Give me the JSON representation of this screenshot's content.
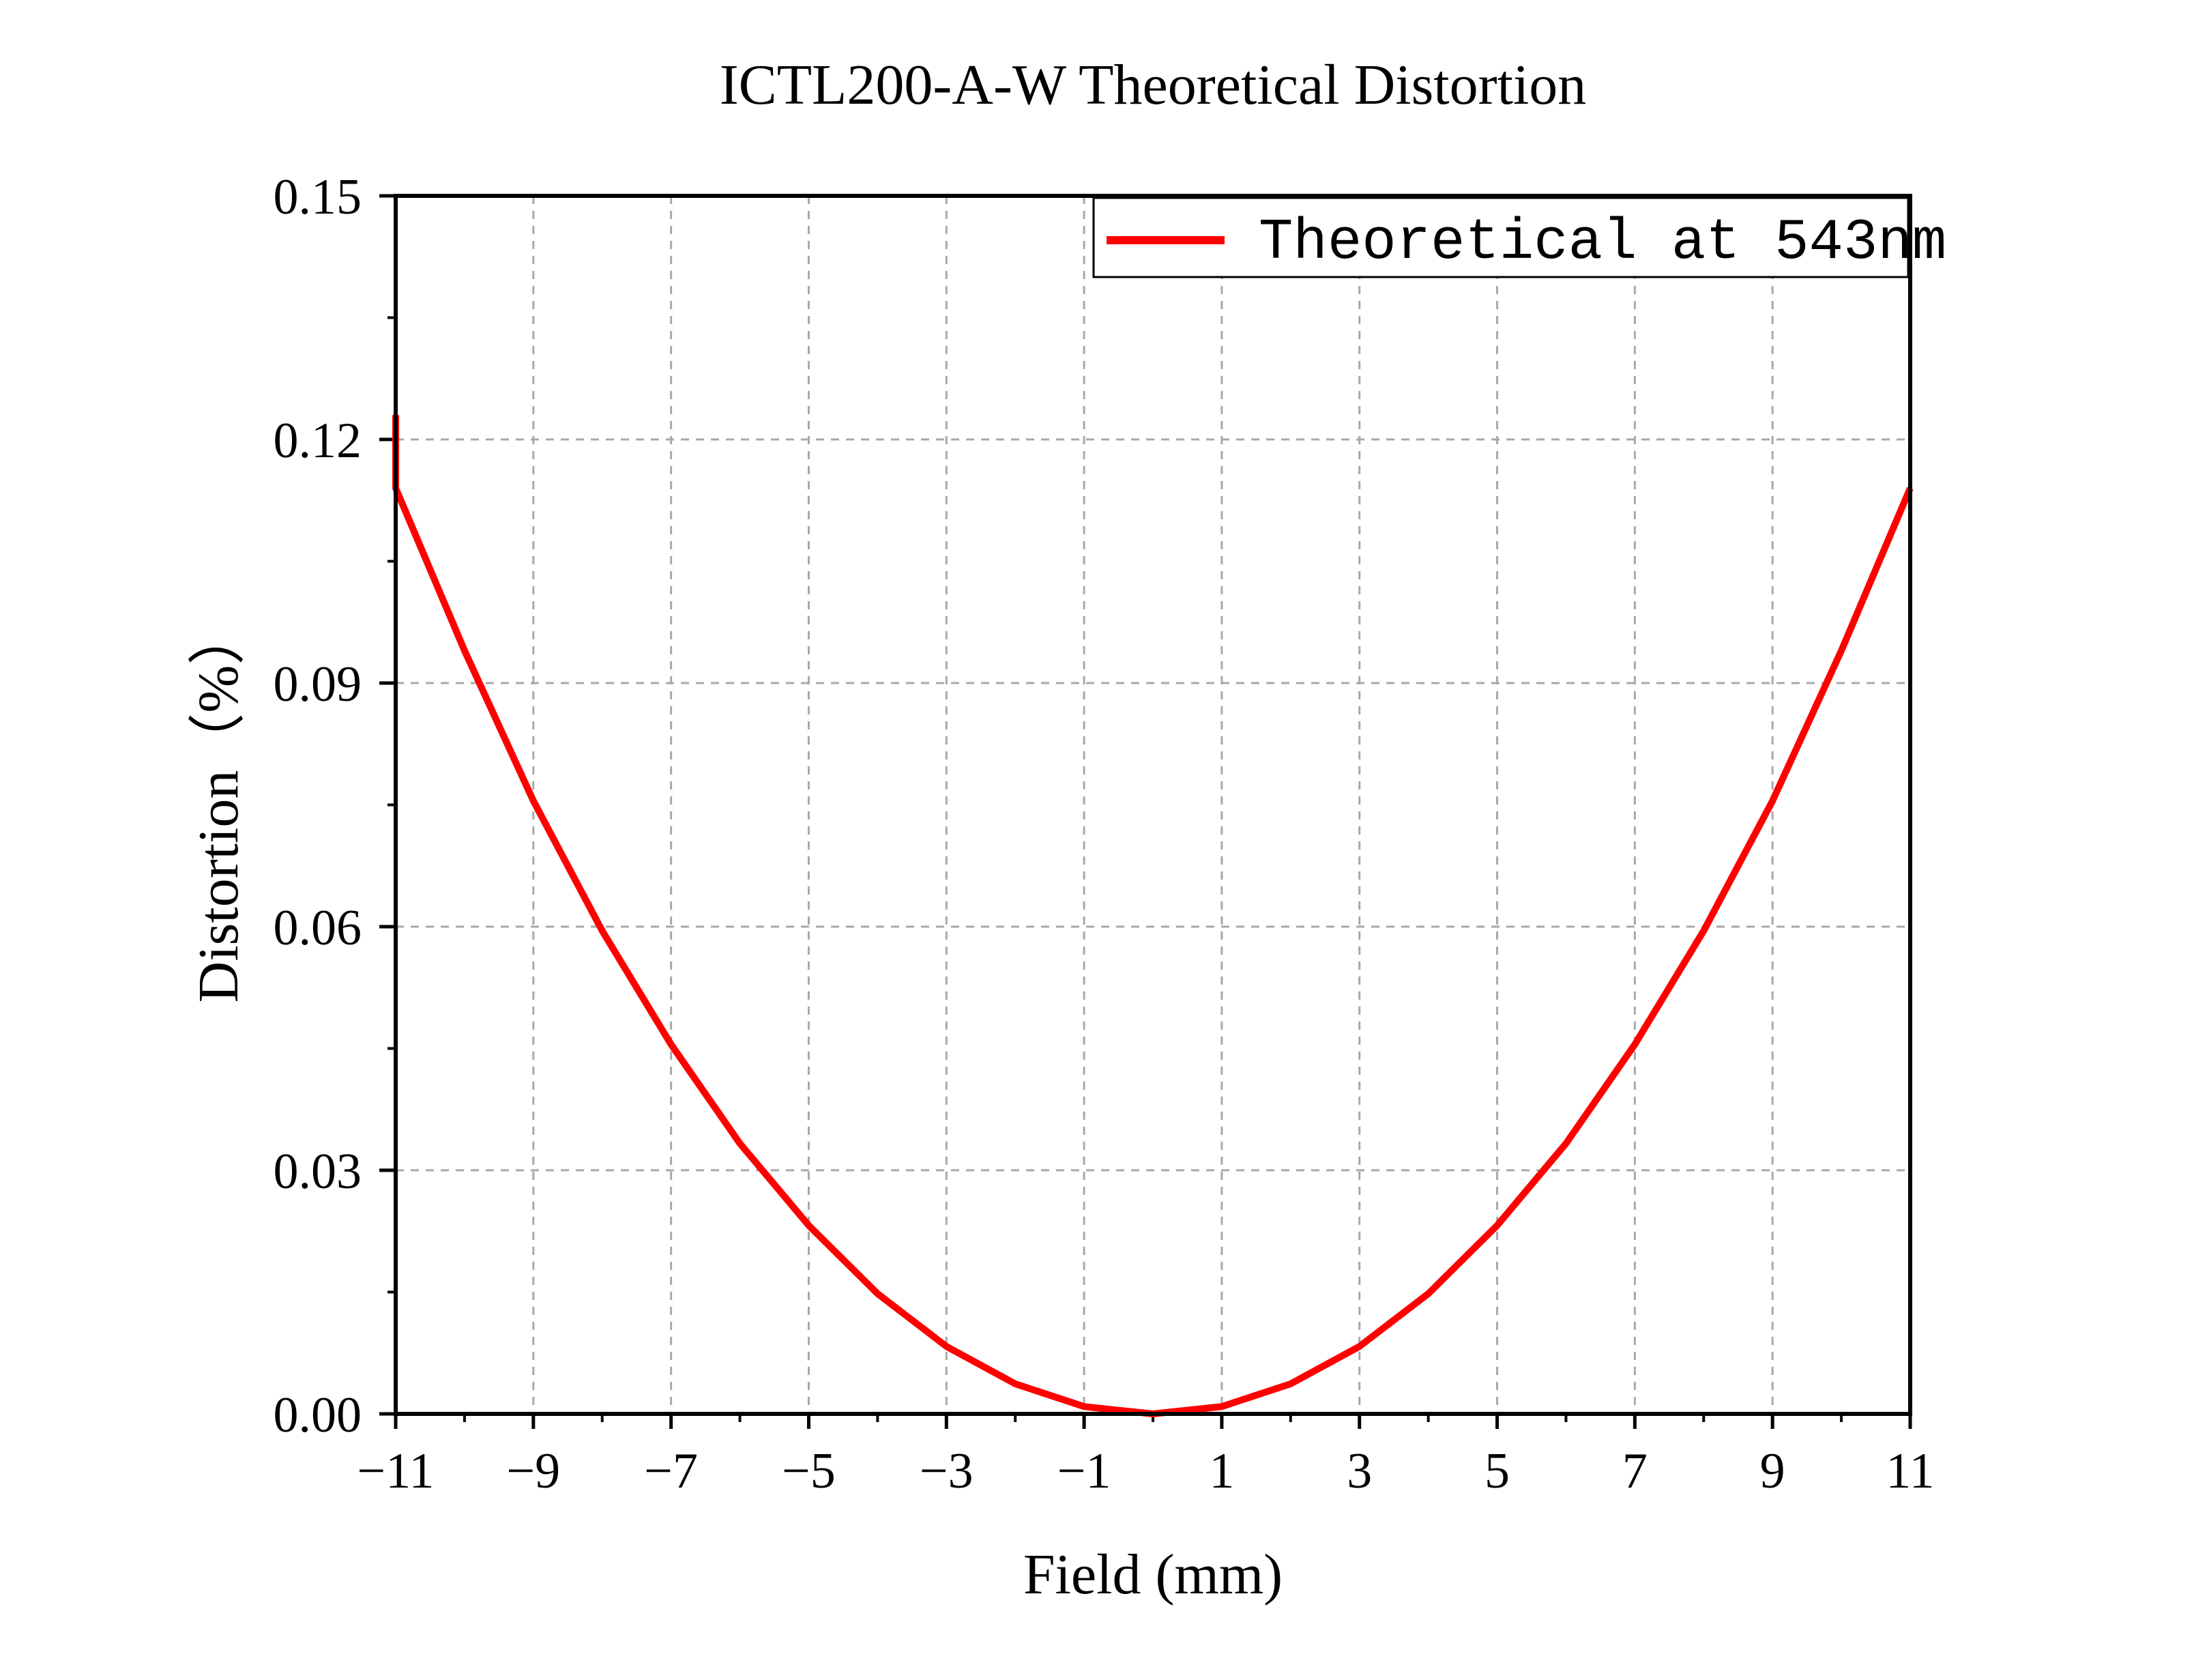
{
  "chart_data": {
    "type": "line",
    "title": "ICTL200-A-W Theoretical Distortion",
    "xlabel": "Field (mm)",
    "ylabel": "Distortion（%）",
    "xlim": [
      -11,
      11
    ],
    "ylim": [
      0,
      0.15
    ],
    "x_ticks": [
      -11,
      -9,
      -7,
      -5,
      -3,
      -1,
      1,
      3,
      5,
      7,
      9,
      11
    ],
    "x_tick_labels": [
      "−11",
      "−9",
      "−7",
      "−5",
      "−3",
      "−1",
      "1",
      "3",
      "5",
      "7",
      "9",
      "11"
    ],
    "y_ticks": [
      0,
      0.03,
      0.06,
      0.09,
      0.12,
      0.15
    ],
    "y_tick_labels": [
      "0.00",
      "0.03",
      "0.06",
      "0.09",
      "0.12",
      "0.15"
    ],
    "grid": true,
    "legend_position": "top-right",
    "series": [
      {
        "name": "Theoretical at 543nm",
        "color": "#ff0000",
        "x": [
          -11,
          -11,
          -10,
          -9,
          -8,
          -7,
          -6,
          -5,
          -4,
          -3,
          -2,
          -1,
          0,
          1,
          2,
          3,
          4,
          5,
          6,
          7,
          8,
          9,
          10,
          11
        ],
        "y": [
          0.123,
          0.114,
          0.094,
          0.0755,
          0.0595,
          0.0455,
          0.0333,
          0.0232,
          0.0148,
          0.0083,
          0.0037,
          0.0009,
          0.0,
          0.0009,
          0.0037,
          0.0083,
          0.0148,
          0.0232,
          0.0333,
          0.0455,
          0.0595,
          0.0755,
          0.094,
          0.114
        ]
      }
    ]
  }
}
